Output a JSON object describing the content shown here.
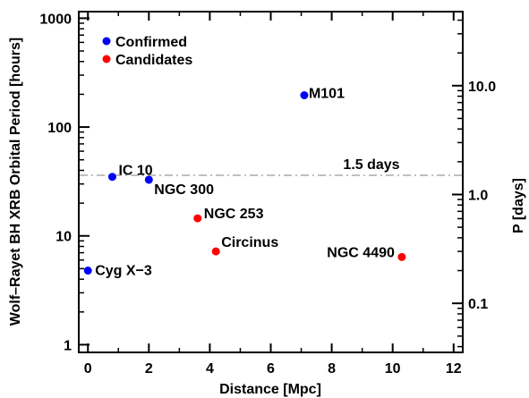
{
  "chart_data": {
    "type": "scatter",
    "xlabel": "Distance [Mpc]",
    "ylabel": "Wolf–Rayet BH XRB Orbital Period [hours]",
    "y2label": "P [days]",
    "xlim": [
      -0.3,
      12.3
    ],
    "ylim": [
      0.85,
      1150
    ],
    "yscale": "log",
    "xticks": [
      0,
      2,
      4,
      6,
      8,
      10,
      12
    ],
    "xtick_labels": [
      "0",
      "2",
      "4",
      "6",
      "8",
      "10",
      "12"
    ],
    "yticks": [
      1,
      10,
      100,
      1000
    ],
    "ytick_labels": [
      "1",
      "10",
      "100",
      "1000"
    ],
    "y2ticks_days": [
      0.1,
      1.0,
      10.0
    ],
    "y2tick_labels": [
      "0.1",
      "1.0",
      "10.0"
    ],
    "legend_position": "top-left",
    "series": [
      {
        "name": "Confirmed",
        "color": "#0000ff",
        "points": [
          {
            "label": "Cyg X−3",
            "x": 0.0,
            "y": 4.8
          },
          {
            "label": "IC 10",
            "x": 0.8,
            "y": 34.9
          },
          {
            "label": "NGC 300",
            "x": 2.0,
            "y": 32.8
          },
          {
            "label": "M101",
            "x": 7.1,
            "y": 196
          }
        ]
      },
      {
        "name": "Candidates",
        "color": "#ff0000",
        "points": [
          {
            "label": "NGC 253",
            "x": 3.6,
            "y": 14.5
          },
          {
            "label": "Circinus",
            "x": 4.2,
            "y": 7.2
          },
          {
            "label": "NGC 4490",
            "x": 10.3,
            "y": 6.4
          }
        ]
      }
    ],
    "reference_line": {
      "label": "1.5 days",
      "y": 36,
      "color": "#aaaaaa",
      "style": "dash-dot"
    }
  }
}
